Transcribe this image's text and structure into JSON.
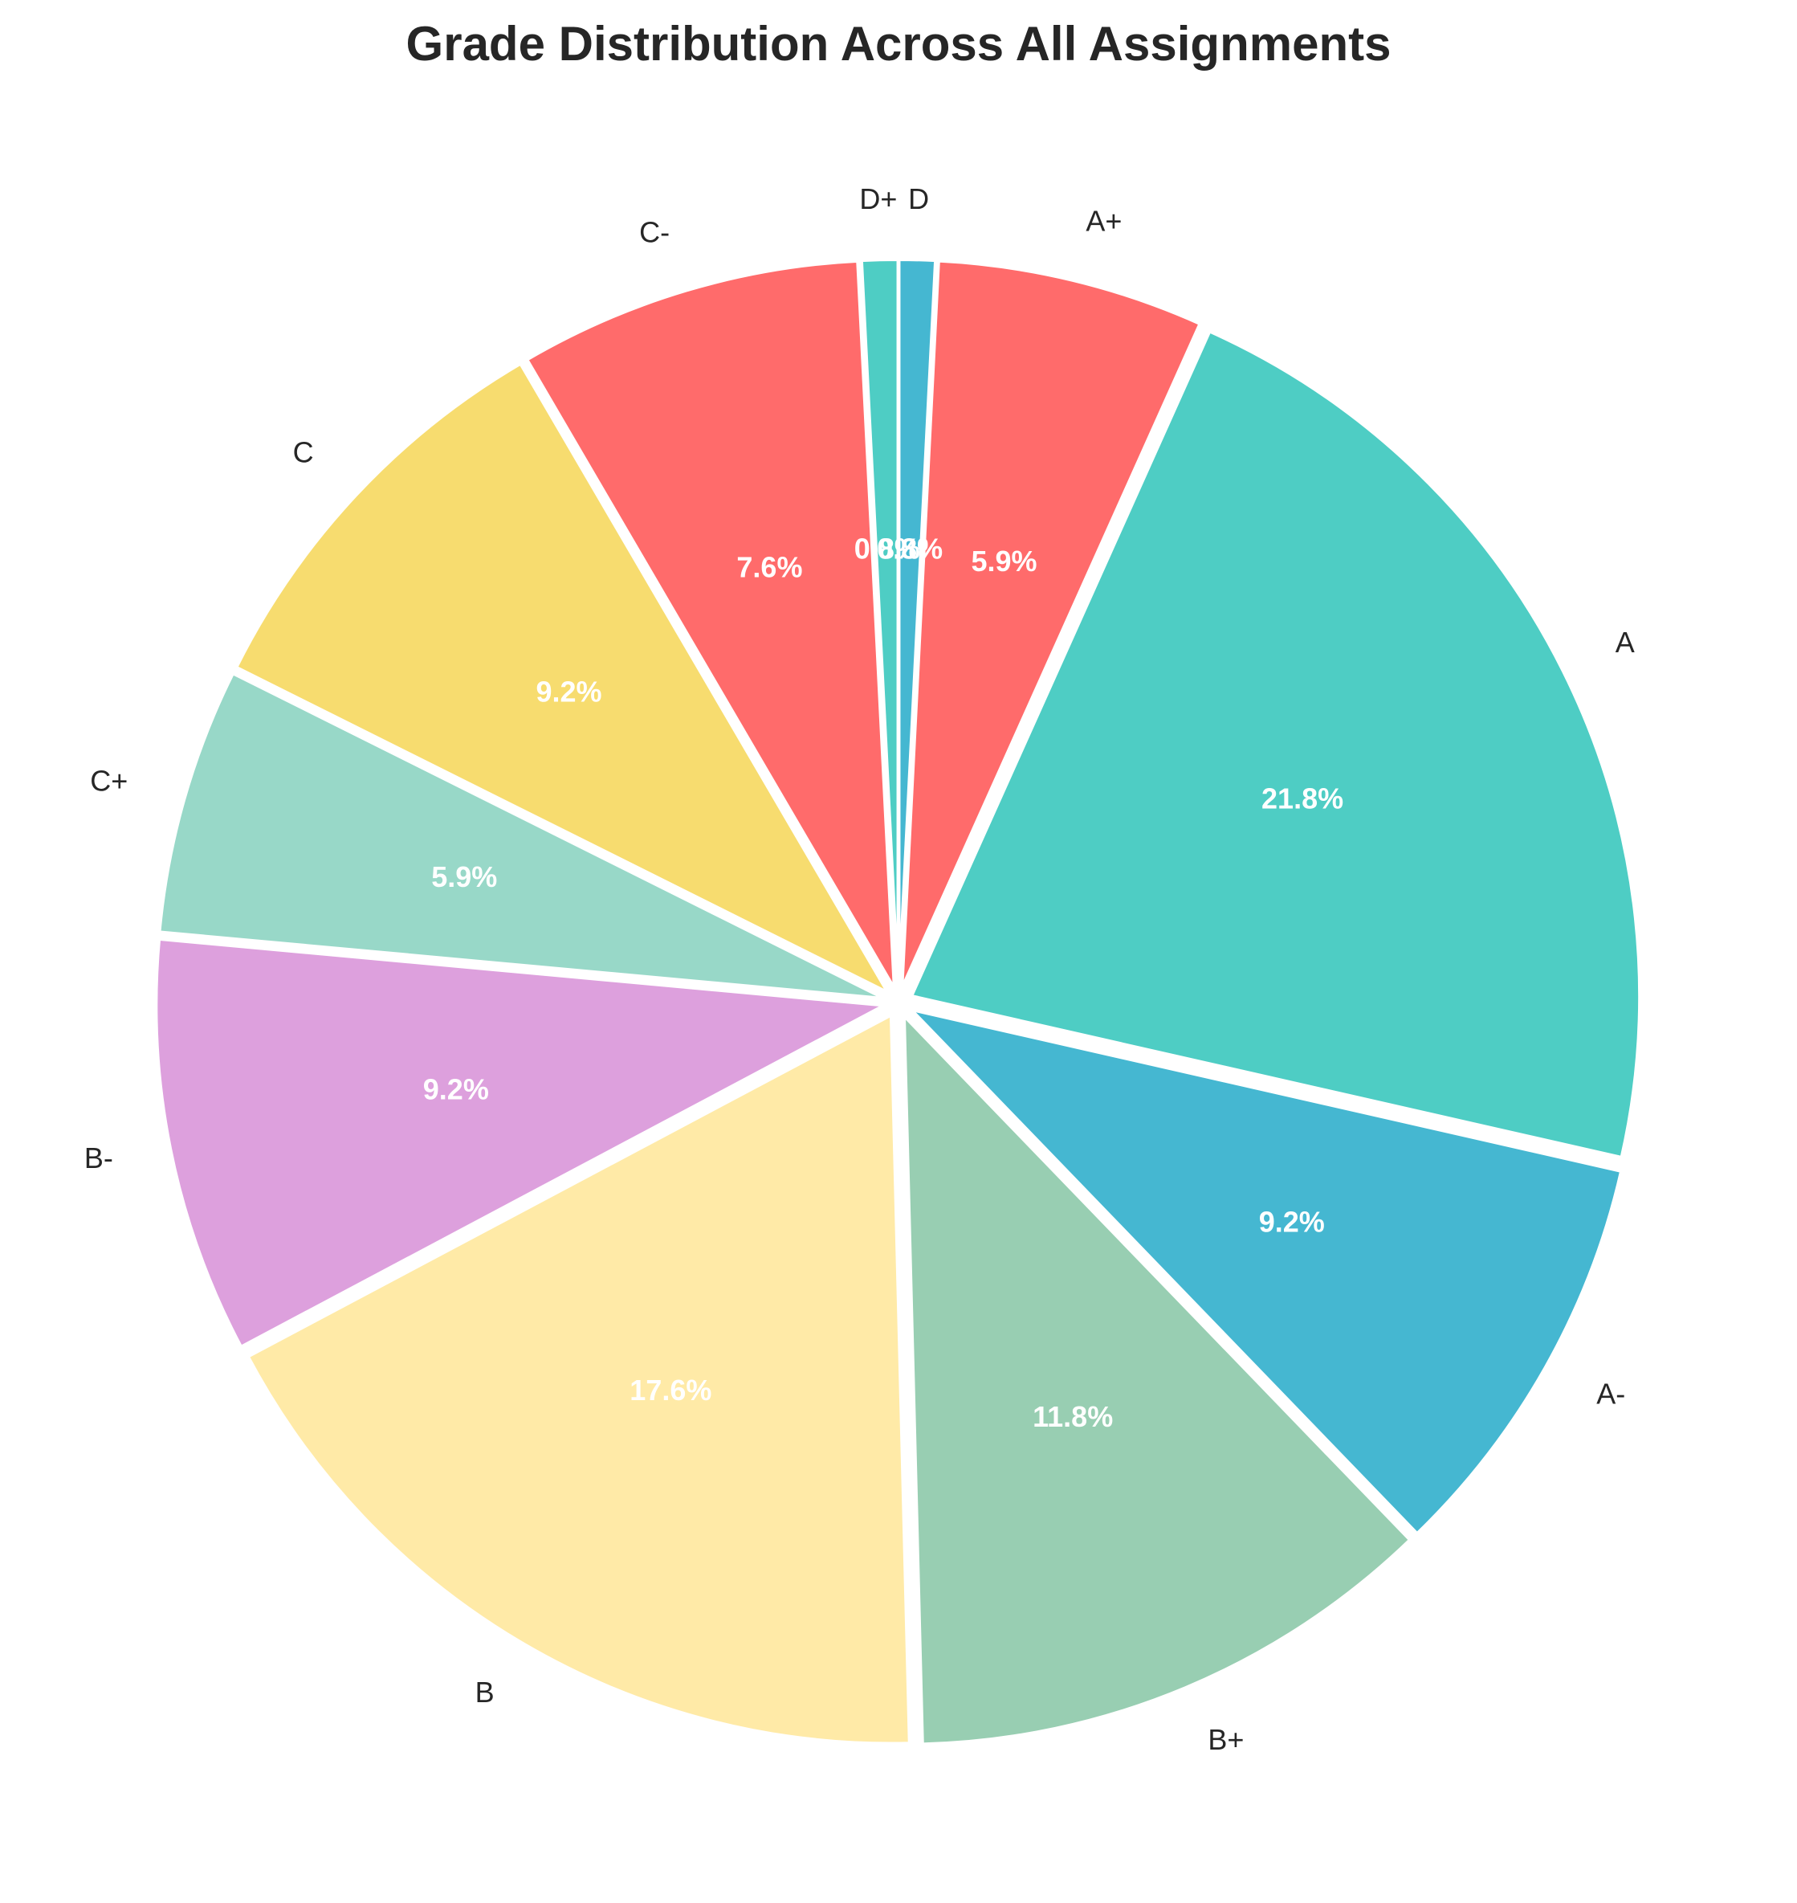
{
  "chart_data": {
    "type": "pie",
    "title": "Grade Distribution Across All Assignments",
    "categories": [
      "D",
      "A+",
      "A",
      "A-",
      "B+",
      "B",
      "B-",
      "C+",
      "C",
      "C-",
      "D+"
    ],
    "values": [
      0.8,
      5.9,
      21.8,
      9.2,
      11.8,
      17.6,
      9.2,
      5.9,
      9.2,
      7.6,
      0.8
    ],
    "value_labels": [
      "0.8%",
      "5.9%",
      "21.8%",
      "9.2%",
      "11.8%",
      "17.6%",
      "9.2%",
      "5.9%",
      "9.2%",
      "7.6%",
      "0.8%"
    ],
    "colors": [
      "#45B7D1",
      "#FF6B6B",
      "#4ECDC4",
      "#45B7D1",
      "#98CEB2",
      "#FFEAA7",
      "#DDA0DD",
      "#98D8C8",
      "#F7DC6F",
      "#FF6B6B",
      "#4ECDC4"
    ],
    "start_angle_deg": 90,
    "direction": "clockwise",
    "exploded": true,
    "legend": "none"
  }
}
